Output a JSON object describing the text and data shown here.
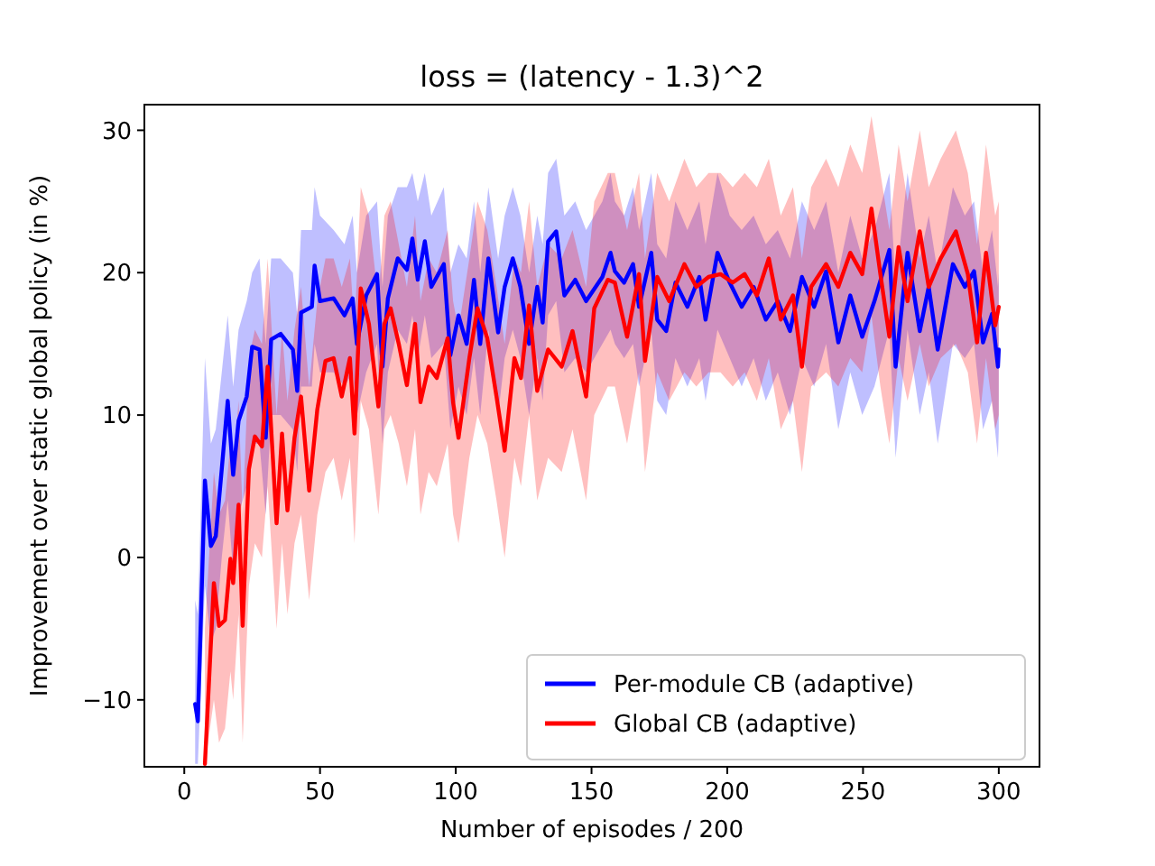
{
  "chart_data": {
    "type": "line",
    "title": "loss = (latency - 1.3)^2",
    "xlabel": "Number of episodes / 200",
    "ylabel": "Improvement over static global policy (in %)",
    "xlim": [
      -14.7,
      315
    ],
    "ylim": [
      -14.7,
      31.8
    ],
    "xticks": [
      0,
      50,
      100,
      150,
      200,
      250,
      300
    ],
    "yticks": [
      -10,
      0,
      10,
      20,
      30
    ],
    "grid": false,
    "legend": "bottom right",
    "line_style": "solid",
    "marker": "none",
    "series": [
      {
        "name": "Per-module CB (adaptive)",
        "color": "#0000ff",
        "x": [
          4,
          5,
          7.6,
          9.8,
          11.6,
          13.8,
          16,
          18,
          20,
          23,
          25,
          27.7,
          30,
          32,
          35.5,
          40,
          41.6,
          43,
          47,
          48,
          50,
          55,
          59,
          62,
          63.6,
          67,
          71,
          73,
          75,
          78.6,
          82,
          84,
          86,
          88.6,
          91,
          95.6,
          98,
          101,
          104,
          106.7,
          109,
          112,
          115.6,
          118,
          121,
          123.8,
          127,
          130,
          132,
          134,
          137,
          140,
          144,
          148,
          154,
          157,
          158.6,
          162,
          165.3,
          167.5,
          172,
          174.2,
          177.5,
          180.9,
          185.3,
          189.7,
          192,
          196.4,
          200.9,
          205.3,
          209.7,
          214.2,
          218.6,
          223.1,
          227.5,
          232,
          236.4,
          240.9,
          245.3,
          249.7,
          254.2,
          259.7,
          262,
          266.4,
          270.9,
          274.2,
          277.5,
          283.1,
          287.5,
          290.9,
          294.2,
          297.5,
          299.7,
          300
        ],
        "values": [
          -10.3,
          -11.5,
          5.4,
          0.8,
          1.5,
          6.2,
          11,
          5.8,
          9.6,
          11.3,
          14.8,
          14.6,
          8.4,
          15.3,
          15.7,
          14.6,
          11.7,
          17.2,
          17.6,
          20.5,
          18,
          18.2,
          17,
          18.2,
          15,
          18.4,
          19.9,
          13.4,
          18.2,
          21,
          20.2,
          22.4,
          19.5,
          22.2,
          19,
          20.6,
          14.2,
          17,
          15,
          19.5,
          15,
          21,
          15.8,
          19,
          21,
          19,
          15,
          19,
          16.5,
          22.2,
          22.9,
          18.4,
          19.5,
          18,
          19.7,
          21.4,
          20.1,
          19.3,
          20.6,
          17.6,
          21.4,
          16.7,
          15.9,
          19.3,
          17.6,
          19.7,
          16.7,
          21.4,
          19.3,
          17.6,
          19,
          16.7,
          18,
          15.9,
          19.7,
          17.6,
          20.1,
          15.1,
          18.4,
          15.5,
          18,
          21.6,
          13.4,
          21.4,
          15.9,
          19,
          14.6,
          20.6,
          19,
          20.1,
          15.1,
          17.1,
          13.4,
          14.6
        ],
        "lower": [
          -14.5,
          -14.5,
          -2,
          -6,
          -5,
          0,
          4,
          -1,
          3,
          5,
          8,
          8,
          3,
          10,
          10,
          9,
          6,
          12,
          12,
          15,
          13,
          13,
          12,
          13,
          10,
          13,
          15,
          8,
          13,
          16,
          15,
          17,
          14,
          17,
          14,
          15,
          9,
          12,
          10,
          14,
          10,
          16,
          10,
          14,
          16,
          14,
          10,
          14,
          11,
          17,
          18,
          13,
          14,
          13,
          15,
          16,
          15,
          14,
          15,
          12,
          16,
          11,
          10,
          14,
          12,
          14,
          11,
          16,
          14,
          12,
          14,
          11,
          13,
          10,
          14,
          12,
          15,
          9,
          13,
          10,
          12,
          16,
          7,
          16,
          10,
          13,
          8,
          15,
          14,
          15,
          9,
          11,
          7,
          9
        ],
        "upper": [
          -3,
          -4,
          14,
          8,
          9,
          13,
          17,
          12,
          16,
          18,
          20,
          21,
          15,
          21,
          21,
          20,
          17,
          23,
          23,
          26,
          24,
          23,
          22,
          24,
          20,
          24,
          25,
          19,
          24,
          26,
          26,
          27,
          25,
          27,
          24,
          26,
          20,
          22,
          21,
          25,
          20,
          26,
          21,
          24,
          26,
          24,
          20,
          24,
          22,
          27,
          28,
          24,
          25,
          23,
          25,
          27,
          25,
          24,
          26,
          23,
          27,
          22,
          21,
          25,
          23,
          25,
          22,
          27,
          24,
          23,
          24,
          22,
          23,
          21,
          25,
          23,
          25,
          20,
          24,
          21,
          23,
          27,
          19,
          27,
          21,
          24,
          20,
          26,
          24,
          25,
          20,
          23,
          19,
          20
        ]
      },
      {
        "name": "Global CB (adaptive)",
        "color": "#ff0000",
        "x": [
          7.6,
          10.9,
          12.8,
          15,
          17,
          18,
          20,
          21.5,
          23.8,
          26,
          28.6,
          30.7,
          34,
          36,
          38,
          40.6,
          43,
          46,
          49,
          52,
          55,
          58,
          61,
          62.7,
          65,
          68,
          71.5,
          73.7,
          76,
          79,
          82,
          85,
          87,
          90,
          93,
          97,
          99,
          101,
          105,
          108,
          111.6,
          115,
          118,
          121.6,
          124,
          127,
          130,
          134,
          139,
          143,
          148,
          151,
          156,
          158.6,
          163.1,
          167.5,
          169.7,
          174.2,
          178.6,
          184.2,
          188.6,
          193.1,
          197.5,
          202,
          206.4,
          210.9,
          215.3,
          219.7,
          224.2,
          227.5,
          230.9,
          236.4,
          240.9,
          245.3,
          249.7,
          253.1,
          256.4,
          259.7,
          263.1,
          266.4,
          270.9,
          274.2,
          278.6,
          284.2,
          288.6,
          292,
          295.3,
          298.7,
          300
        ],
        "values": [
          -14.5,
          -1.8,
          -4.8,
          -4.4,
          -0.1,
          -1.8,
          3.7,
          -4.8,
          6.2,
          8.5,
          7.8,
          13.4,
          2.4,
          8.7,
          3.3,
          8.4,
          11.3,
          4.7,
          10.4,
          13.8,
          14,
          11.3,
          14,
          8.7,
          18.9,
          16.4,
          10.6,
          16.4,
          17.5,
          15,
          12.1,
          16.4,
          10.9,
          13.4,
          12.6,
          15.4,
          10.9,
          8.4,
          14,
          17.5,
          15.4,
          11.3,
          7.5,
          14,
          12.6,
          17.7,
          11.7,
          14.6,
          13.4,
          15.9,
          11.3,
          17.5,
          19.5,
          19.3,
          15.5,
          19.9,
          13.8,
          19.7,
          18,
          20.6,
          19,
          19.7,
          19.9,
          19.3,
          19.9,
          18.4,
          21,
          16.7,
          18.4,
          13.4,
          19,
          20.6,
          19,
          21.4,
          19.9,
          24.5,
          19.9,
          15.5,
          21.8,
          18,
          22.9,
          19,
          21,
          22.9,
          19.9,
          15.1,
          21.4,
          16.3,
          17.6
        ],
        "lower": [
          -14.6,
          -10,
          -13,
          -12,
          -8,
          -10,
          -4,
          -13,
          -2,
          1,
          0,
          5,
          -5,
          1,
          -4,
          1,
          3,
          -3,
          3,
          6,
          7,
          4,
          7,
          1,
          11,
          9,
          3,
          9,
          10,
          8,
          5,
          9,
          3,
          6,
          5,
          8,
          3,
          1,
          7,
          10,
          8,
          4,
          0,
          7,
          5,
          10,
          4,
          7,
          6,
          9,
          4,
          10,
          12,
          12,
          8,
          13,
          6,
          13,
          11,
          13,
          12,
          13,
          13,
          12,
          13,
          11,
          14,
          9,
          11,
          6,
          12,
          13,
          12,
          14,
          13,
          17,
          12,
          8,
          14,
          11,
          15,
          12,
          14,
          15,
          13,
          8,
          14,
          9,
          10
        ],
        "upper": [
          -5,
          6,
          3,
          4,
          8,
          6,
          11,
          3,
          14,
          16,
          15,
          21,
          10,
          16,
          11,
          16,
          19,
          12,
          18,
          21,
          21,
          19,
          21,
          16,
          26,
          24,
          18,
          24,
          25,
          22,
          19,
          24,
          18,
          21,
          20,
          23,
          18,
          16,
          21,
          25,
          23,
          19,
          15,
          21,
          20,
          25,
          19,
          22,
          21,
          23,
          19,
          25,
          27,
          27,
          23,
          27,
          21,
          27,
          25,
          28,
          26,
          27,
          27,
          26,
          27,
          26,
          28,
          24,
          26,
          21,
          26,
          28,
          26,
          29,
          27,
          31,
          27,
          23,
          29,
          25,
          30,
          26,
          28,
          30,
          27,
          22,
          29,
          24,
          25
        ]
      }
    ]
  }
}
